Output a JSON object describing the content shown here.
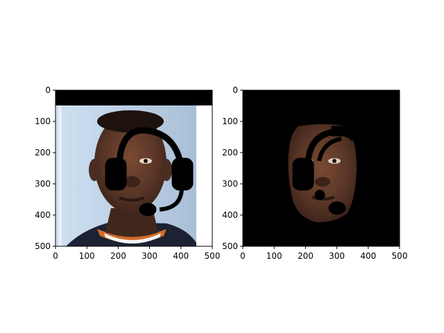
{
  "chart_data": [
    {
      "type": "image",
      "panel": "left",
      "description_visible": "photo of face with a drawn black headset overlay",
      "xlim": [
        0,
        500
      ],
      "ylim": [
        500,
        0
      ],
      "xticks": [
        0,
        100,
        200,
        300,
        400,
        500
      ],
      "yticks": [
        0,
        100,
        200,
        300,
        400,
        500
      ],
      "xtick_labels": [
        "0",
        "100",
        "200",
        "300",
        "400",
        "500"
      ],
      "ytick_labels": [
        "0",
        "100",
        "200",
        "300",
        "400",
        "500"
      ],
      "title": "",
      "xlabel": "",
      "ylabel": ""
    },
    {
      "type": "image",
      "panel": "right",
      "description_visible": "segmented face region on black background with headset mask",
      "xlim": [
        0,
        500
      ],
      "ylim": [
        500,
        0
      ],
      "xticks": [
        0,
        100,
        200,
        300,
        400,
        500
      ],
      "yticks": [
        0,
        100,
        200,
        300,
        400,
        500
      ],
      "xtick_labels": [
        "0",
        "100",
        "200",
        "300",
        "400",
        "500"
      ],
      "ytick_labels": [
        "0",
        "100",
        "200",
        "300",
        "400",
        "500"
      ],
      "title": "",
      "xlabel": "",
      "ylabel": ""
    }
  ],
  "colors": {
    "background": "#ffffff",
    "backdrop_blue": "#b9cde3",
    "skin": "#5b3a2a",
    "mask_black": "#000000"
  }
}
